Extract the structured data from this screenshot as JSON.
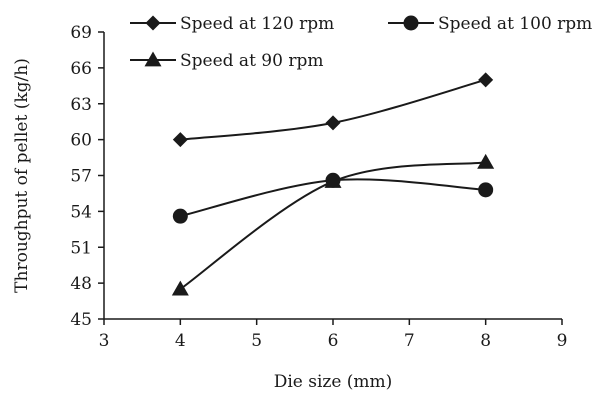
{
  "chart_data": {
    "type": "line",
    "title": "",
    "xlabel": "Die size (mm)",
    "ylabel": "Throughput of pellet (kg/h)",
    "xlim": [
      3,
      9
    ],
    "ylim": [
      45,
      69
    ],
    "xticks": [
      3,
      4,
      5,
      6,
      7,
      8,
      9
    ],
    "yticks": [
      45,
      48,
      51,
      54,
      57,
      60,
      63,
      66,
      69
    ],
    "grid": false,
    "legend_position": "top",
    "x": [
      4,
      6,
      8
    ],
    "series": [
      {
        "name": "Speed at 120 rpm",
        "marker": "diamond",
        "values": [
          60.0,
          61.4,
          65.0
        ]
      },
      {
        "name": "Speed at 100 rpm",
        "marker": "circle",
        "values": [
          53.6,
          56.6,
          55.8
        ]
      },
      {
        "name": "Speed at 90 rpm",
        "marker": "triangle",
        "values": [
          47.5,
          56.5,
          58.1
        ]
      }
    ]
  }
}
